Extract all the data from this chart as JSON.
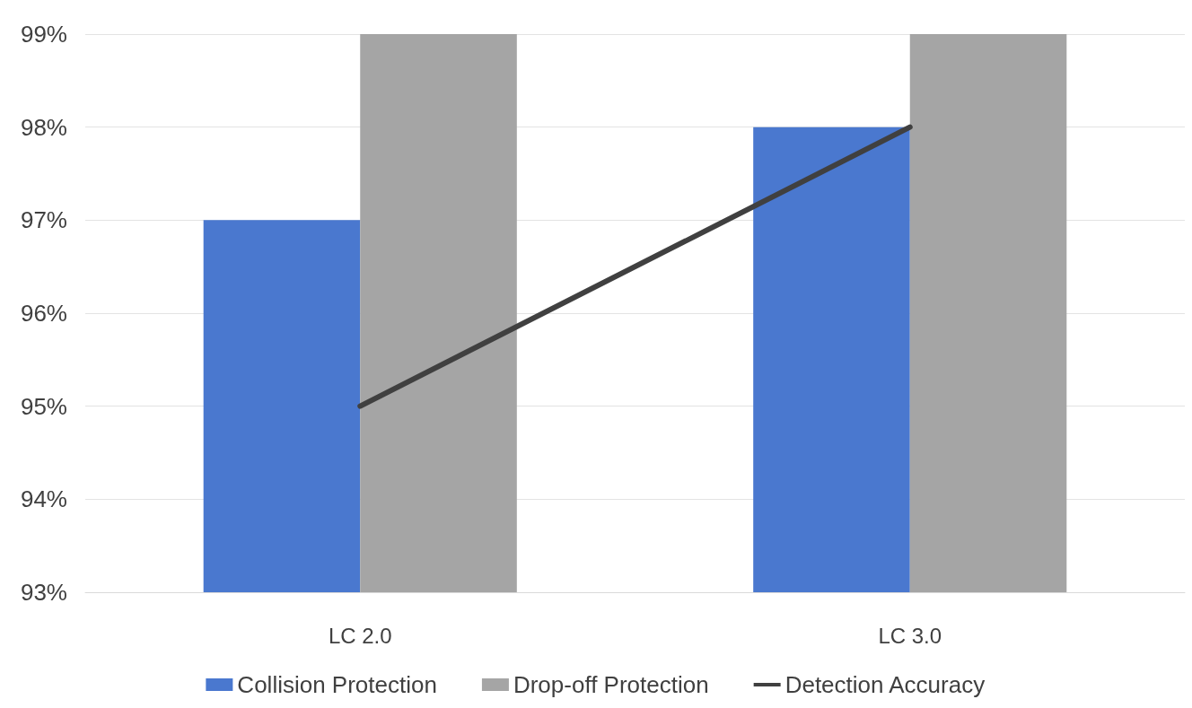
{
  "chart_data": {
    "type": "bar",
    "categories": [
      "LC 2.0",
      "LC 3.0"
    ],
    "series": [
      {
        "name": "Collision Protection",
        "color": "#4a78cf",
        "values": [
          97,
          98
        ]
      },
      {
        "name": "Drop-off Protection",
        "color": "#a5a5a5",
        "values": [
          99,
          99
        ]
      },
      {
        "name": "Detection Accuracy",
        "type": "line",
        "color": "#404040",
        "values": [
          95,
          98
        ]
      }
    ],
    "ylim": [
      93,
      99
    ],
    "yticks": [
      {
        "value": 93,
        "label": "93%"
      },
      {
        "value": 94,
        "label": "94%"
      },
      {
        "value": 95,
        "label": "95%"
      },
      {
        "value": 96,
        "label": "96%"
      },
      {
        "value": 97,
        "label": "97%"
      },
      {
        "value": 98,
        "label": "98%"
      },
      {
        "value": 99,
        "label": "99%"
      }
    ],
    "grid": "y",
    "legend": "bottom",
    "marker": "none",
    "line_style": "solid"
  }
}
